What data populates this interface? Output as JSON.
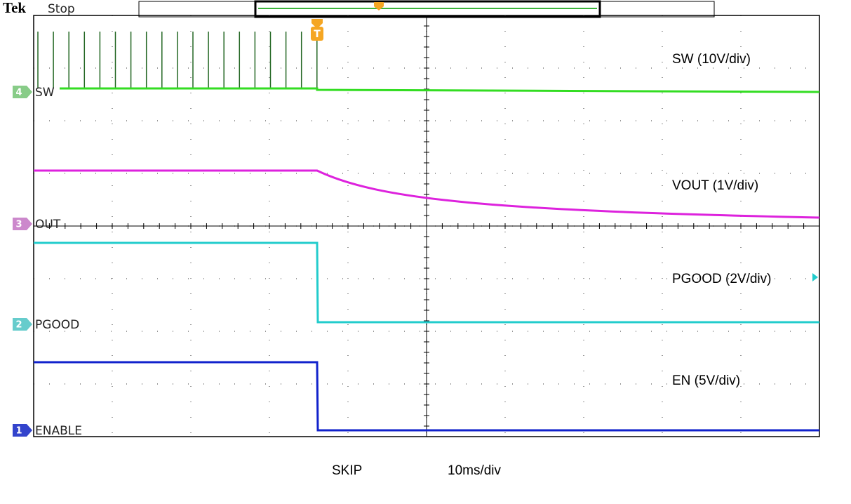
{
  "header": {
    "brand": "Tek",
    "status": "Stop"
  },
  "channels": [
    {
      "number": "4",
      "label": "SW"
    },
    {
      "number": "3",
      "label": "OUT"
    },
    {
      "number": "2",
      "label": "PGOOD"
    },
    {
      "number": "1",
      "label": "ENABLE"
    }
  ],
  "annotations": [
    "SW (10V/div)",
    "VOUT (1V/div)",
    "PGOOD (2V/div)",
    "EN (5V/div)"
  ],
  "trigger": "T",
  "footer": {
    "mode": "SKIP",
    "timebase": "10ms/div"
  }
}
